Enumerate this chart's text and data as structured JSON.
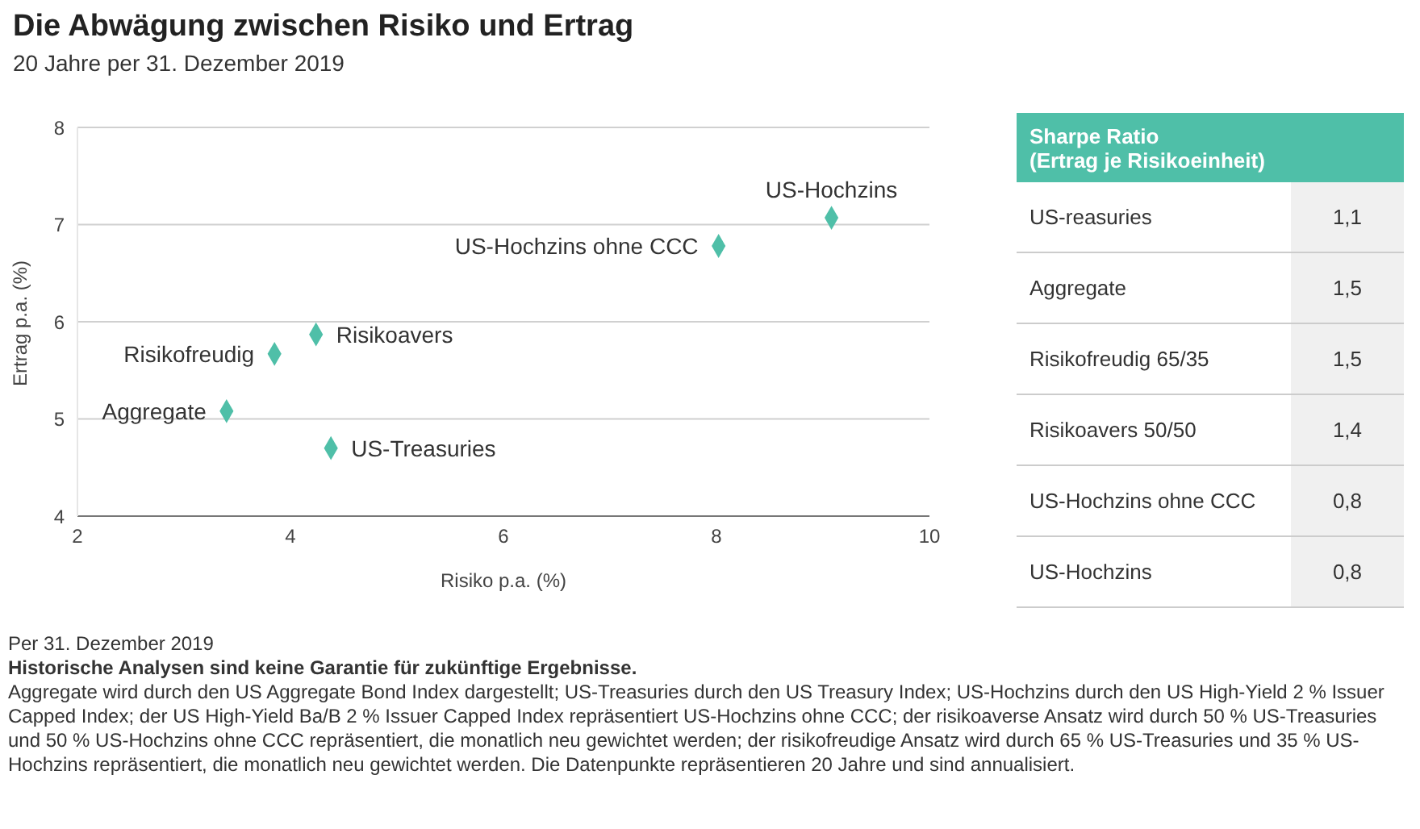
{
  "chart_data": [
    {
      "type": "scatter",
      "title": "Die Abwägung zwischen Risiko und Ertrag",
      "subtitle": "20 Jahre per 31. Dezember 2019",
      "xlabel": "Risiko p.a. (%)",
      "ylabel": "Ertrag p.a. (%)",
      "xlim": [
        2,
        10
      ],
      "xticks": [
        2,
        4,
        6,
        8,
        10
      ],
      "ylim": [
        4,
        8
      ],
      "yticks": [
        4,
        5,
        6,
        7,
        8
      ],
      "grid": "y",
      "legend": false,
      "marker": "diamond",
      "series": [
        {
          "name": "US-Hochzins",
          "color": "#4fbfa8",
          "x": [
            9.08
          ],
          "values": [
            7.07
          ]
        },
        {
          "name": "US-Hochzins ohne CCC",
          "color": "#4fbfa8",
          "x": [
            8.02
          ],
          "values": [
            6.78
          ]
        },
        {
          "name": "Risikoavers",
          "color": "#4fbfa8",
          "x": [
            4.24
          ],
          "values": [
            5.87
          ]
        },
        {
          "name": "Risikofreudig",
          "color": "#4fbfa8",
          "x": [
            3.85
          ],
          "values": [
            5.67
          ]
        },
        {
          "name": "Aggregate",
          "color": "#4fbfa8",
          "x": [
            3.4
          ],
          "values": [
            5.08
          ]
        },
        {
          "name": "US-Treasuries",
          "color": "#4fbfa8",
          "x": [
            4.38
          ],
          "values": [
            4.7
          ]
        }
      ],
      "annotations": [
        "Per 31. Dezember 2019",
        "Historische Analysen sind keine Garantie für zukünftige Ergebnisse.",
        "Aggregate wird durch den US Aggregate Bond Index dargestellt; US-Treasuries durch den US Treasury Index; US-Hochzins durch den US High-Yield 2 % Issuer Capped Index; der US High-Yield Ba/B 2 % Issuer Capped Index repräsentiert US-Hochzins ohne CCC; der risikoaverse Ansatz wird durch 50 % US-Treasuries und 50 % US-Hochzins ohne CCC repräsentiert, die monatlich neu gewichtet werden; der risikofreudige Ansatz wird durch 65 % US-Treasuries und 35 % US-Hochzins repräsentiert, die monatlich neu gewichtet werden. Die Datenpunkte repräsentieren 20 Jahre und sind annualisiert."
      ]
    },
    {
      "type": "other",
      "title": "Sharpe Ratio",
      "subtitle": "(Ertrag je Risikoeinheit)",
      "categories": [
        "US-reasuries",
        "Aggregate",
        "Risikofreudig 65/35",
        "Risikoavers 50/50",
        "US-Hochzins ohne CCC",
        "US-Hochzins"
      ],
      "values": [
        1.1,
        1.5,
        1.5,
        1.4,
        0.8,
        0.8
      ],
      "value_labels": [
        "1,1",
        "1,5",
        "1,5",
        "1,4",
        "0,8",
        "0,8"
      ]
    }
  ]
}
